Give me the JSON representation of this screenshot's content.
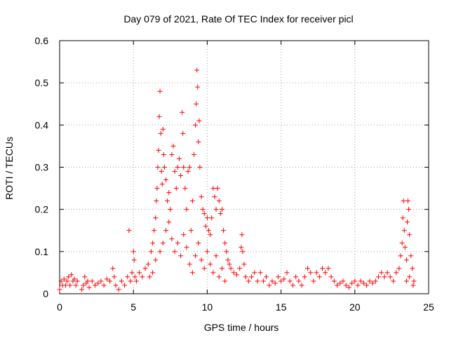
{
  "chart_data": {
    "type": "scatter",
    "title": "Day 079 of 2021, Rate Of TEC Index for receiver picl",
    "xlabel": "GPS time / hours",
    "ylabel": "ROTI / TECUs",
    "xlim": [
      0,
      25
    ],
    "ylim": [
      0,
      0.6
    ],
    "x_ticks": [
      "0",
      "5",
      "10",
      "15",
      "20",
      "25"
    ],
    "y_ticks": [
      "0",
      "0.1",
      "0.2",
      "0.3",
      "0.4",
      "0.5",
      "0.6"
    ],
    "grid": true,
    "legend": "none",
    "marker": "+",
    "series": [
      {
        "color": "#ff0000",
        "points": [
          [
            0.0,
            0.01
          ],
          [
            0.1,
            0.03
          ],
          [
            0.2,
            0.02
          ],
          [
            0.3,
            0.035
          ],
          [
            0.4,
            0.02
          ],
          [
            0.5,
            0.03
          ],
          [
            0.6,
            0.04
          ],
          [
            0.7,
            0.02
          ],
          [
            0.8,
            0.045
          ],
          [
            0.9,
            0.03
          ],
          [
            1.0,
            0.035
          ],
          [
            1.1,
            0.02
          ],
          [
            1.2,
            0.03
          ],
          [
            1.5,
            0.01
          ],
          [
            1.6,
            0.02
          ],
          [
            1.7,
            0.04
          ],
          [
            1.8,
            0.025
          ],
          [
            1.9,
            0.03
          ],
          [
            2.0,
            0.015
          ],
          [
            2.2,
            0.03
          ],
          [
            2.4,
            0.02
          ],
          [
            2.6,
            0.025
          ],
          [
            2.8,
            0.03
          ],
          [
            3.0,
            0.02
          ],
          [
            3.2,
            0.035
          ],
          [
            3.4,
            0.03
          ],
          [
            3.6,
            0.06
          ],
          [
            3.7,
            0.04
          ],
          [
            3.8,
            0.02
          ],
          [
            4.0,
            0.01
          ],
          [
            4.2,
            0.03
          ],
          [
            4.4,
            0.02
          ],
          [
            4.6,
            0.04
          ],
          [
            4.7,
            0.15
          ],
          [
            4.8,
            0.03
          ],
          [
            4.9,
            0.05
          ],
          [
            5.0,
            0.1
          ],
          [
            5.05,
            0.08
          ],
          [
            5.1,
            0.04
          ],
          [
            5.2,
            0.03
          ],
          [
            5.4,
            0.05
          ],
          [
            5.6,
            0.04
          ],
          [
            5.8,
            0.06
          ],
          [
            6.0,
            0.07
          ],
          [
            6.1,
            0.04
          ],
          [
            6.2,
            0.1
          ],
          [
            6.3,
            0.12
          ],
          [
            6.4,
            0.15
          ],
          [
            6.5,
            0.18
          ],
          [
            6.55,
            0.22
          ],
          [
            6.6,
            0.25
          ],
          [
            6.65,
            0.3
          ],
          [
            6.7,
            0.34
          ],
          [
            6.75,
            0.42
          ],
          [
            6.8,
            0.48
          ],
          [
            6.85,
            0.38
          ],
          [
            6.9,
            0.29
          ],
          [
            6.95,
            0.26
          ],
          [
            7.0,
            0.39
          ],
          [
            7.05,
            0.33
          ],
          [
            7.1,
            0.3
          ],
          [
            7.2,
            0.27
          ],
          [
            7.3,
            0.22
          ],
          [
            7.4,
            0.24
          ],
          [
            7.5,
            0.2
          ],
          [
            7.6,
            0.33
          ],
          [
            7.7,
            0.35
          ],
          [
            7.8,
            0.29
          ],
          [
            7.9,
            0.25
          ],
          [
            8.0,
            0.3
          ],
          [
            8.1,
            0.32
          ],
          [
            8.2,
            0.28
          ],
          [
            8.3,
            0.43
          ],
          [
            8.35,
            0.38
          ],
          [
            8.4,
            0.3
          ],
          [
            8.5,
            0.25
          ],
          [
            8.6,
            0.2
          ],
          [
            8.7,
            0.29
          ],
          [
            8.8,
            0.3
          ],
          [
            8.9,
            0.15
          ],
          [
            9.0,
            0.22
          ],
          [
            9.1,
            0.33
          ],
          [
            9.2,
            0.4
          ],
          [
            9.25,
            0.45
          ],
          [
            9.3,
            0.53
          ],
          [
            9.35,
            0.49
          ],
          [
            9.4,
            0.36
          ],
          [
            9.45,
            0.41
          ],
          [
            9.5,
            0.3
          ],
          [
            9.6,
            0.23
          ],
          [
            9.7,
            0.2
          ],
          [
            9.8,
            0.19
          ],
          [
            9.9,
            0.16
          ],
          [
            10.0,
            0.18
          ],
          [
            10.1,
            0.15
          ],
          [
            10.2,
            0.14
          ],
          [
            10.3,
            0.18
          ],
          [
            10.4,
            0.25
          ],
          [
            10.5,
            0.23
          ],
          [
            10.6,
            0.2
          ],
          [
            10.7,
            0.25
          ],
          [
            10.8,
            0.22
          ],
          [
            10.9,
            0.19
          ],
          [
            11.0,
            0.2
          ],
          [
            11.1,
            0.15
          ],
          [
            11.2,
            0.12
          ],
          [
            11.3,
            0.1
          ],
          [
            11.4,
            0.08
          ],
          [
            11.5,
            0.07
          ],
          [
            11.6,
            0.06
          ],
          [
            11.8,
            0.05
          ],
          [
            12.0,
            0.045
          ],
          [
            6.3,
            0.05
          ],
          [
            6.5,
            0.08
          ],
          [
            6.8,
            0.1
          ],
          [
            7.0,
            0.12
          ],
          [
            7.2,
            0.15
          ],
          [
            7.4,
            0.17
          ],
          [
            7.6,
            0.13
          ],
          [
            7.8,
            0.1
          ],
          [
            8.0,
            0.12
          ],
          [
            8.2,
            0.09
          ],
          [
            8.4,
            0.14
          ],
          [
            8.6,
            0.11
          ],
          [
            8.8,
            0.07
          ],
          [
            9.0,
            0.05
          ],
          [
            9.2,
            0.09
          ],
          [
            9.4,
            0.12
          ],
          [
            9.6,
            0.08
          ],
          [
            9.8,
            0.06
          ],
          [
            10.0,
            0.1
          ],
          [
            10.2,
            0.07
          ],
          [
            10.4,
            0.05
          ],
          [
            10.6,
            0.09
          ],
          [
            10.8,
            0.04
          ],
          [
            11.0,
            0.06
          ],
          [
            11.2,
            0.03
          ],
          [
            12.2,
            0.06
          ],
          [
            12.3,
            0.11
          ],
          [
            12.35,
            0.14
          ],
          [
            12.4,
            0.1
          ],
          [
            12.5,
            0.07
          ],
          [
            12.6,
            0.04
          ],
          [
            12.8,
            0.03
          ],
          [
            13.0,
            0.04
          ],
          [
            13.2,
            0.05
          ],
          [
            13.4,
            0.03
          ],
          [
            13.6,
            0.05
          ],
          [
            13.8,
            0.03
          ],
          [
            14.0,
            0.04
          ],
          [
            14.2,
            0.02
          ],
          [
            14.4,
            0.03
          ],
          [
            14.6,
            0.025
          ],
          [
            14.8,
            0.04
          ],
          [
            15.0,
            0.03
          ],
          [
            15.2,
            0.035
          ],
          [
            15.4,
            0.05
          ],
          [
            15.6,
            0.03
          ],
          [
            15.8,
            0.02
          ],
          [
            16.0,
            0.04
          ],
          [
            16.2,
            0.03
          ],
          [
            16.4,
            0.02
          ],
          [
            16.6,
            0.04
          ],
          [
            16.8,
            0.06
          ],
          [
            17.0,
            0.05
          ],
          [
            17.2,
            0.03
          ],
          [
            17.4,
            0.05
          ],
          [
            17.6,
            0.04
          ],
          [
            17.8,
            0.06
          ],
          [
            18.0,
            0.05
          ],
          [
            18.2,
            0.06
          ],
          [
            18.4,
            0.04
          ],
          [
            18.6,
            0.03
          ],
          [
            18.8,
            0.02
          ],
          [
            19.0,
            0.025
          ],
          [
            19.2,
            0.03
          ],
          [
            19.4,
            0.02
          ],
          [
            19.6,
            0.015
          ],
          [
            19.8,
            0.025
          ],
          [
            20.0,
            0.03
          ],
          [
            20.2,
            0.02
          ],
          [
            20.4,
            0.03
          ],
          [
            20.6,
            0.025
          ],
          [
            20.8,
            0.02
          ],
          [
            21.0,
            0.03
          ],
          [
            21.2,
            0.025
          ],
          [
            21.4,
            0.03
          ],
          [
            21.6,
            0.04
          ],
          [
            21.8,
            0.05
          ],
          [
            22.0,
            0.04
          ],
          [
            22.2,
            0.05
          ],
          [
            22.4,
            0.04
          ],
          [
            22.6,
            0.03
          ],
          [
            22.8,
            0.05
          ],
          [
            23.0,
            0.06
          ],
          [
            23.1,
            0.09
          ],
          [
            23.2,
            0.12
          ],
          [
            23.25,
            0.18
          ],
          [
            23.3,
            0.22
          ],
          [
            23.35,
            0.15
          ],
          [
            23.4,
            0.11
          ],
          [
            23.5,
            0.08
          ],
          [
            23.55,
            0.17
          ],
          [
            23.6,
            0.22
          ],
          [
            23.65,
            0.2
          ],
          [
            23.7,
            0.14
          ],
          [
            23.8,
            0.09
          ],
          [
            23.9,
            0.06
          ],
          [
            24.0,
            0.03
          ],
          [
            23.95,
            0.02
          ],
          [
            23.7,
            0.04
          ],
          [
            23.5,
            0.03
          ]
        ]
      }
    ]
  }
}
